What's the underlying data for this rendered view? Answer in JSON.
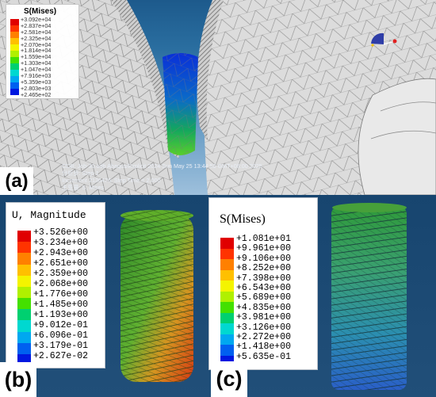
{
  "panel_a": {
    "label": "(a)",
    "legend_title": "S(Mises)",
    "legend_values": [
      "+3.092e+04",
      "+2.837e+04",
      "+2.581e+04",
      "+2.325e+04",
      "+2.070e+04",
      "+1.814e+04",
      "+1.559e+04",
      "+1.303e+04",
      "+1.047e+04",
      "+7.916e+03",
      "+5.359e+03",
      "+2.803e+03",
      "+2.465e+02"
    ],
    "legend_colors": [
      "#e00000",
      "#ff3300",
      "#ff8000",
      "#ffc000",
      "#f4f400",
      "#b0f000",
      "#44e000",
      "#00d070",
      "#00d8d0",
      "#00a8f0",
      "#0060f0",
      "#0018e0"
    ],
    "info_lines": [
      "ODB: Job-30.odb    Abaqus/Explicit 2024    Sun May 25 13:44:50 GMT+08:00 2025",
      "分析步: Step-1",
      "Increment   2136476: Step Time =    2.000",
      "主变量: S, Mises"
    ]
  },
  "panel_b": {
    "label": "(b)",
    "legend_title": "U, Magnitude",
    "legend_values": [
      "+3.526e+00",
      "+3.234e+00",
      "+2.943e+00",
      "+2.651e+00",
      "+2.359e+00",
      "+2.068e+00",
      "+1.776e+00",
      "+1.485e+00",
      "+1.193e+00",
      "+9.012e-01",
      "+6.096e-01",
      "+3.179e-01",
      "+2.627e-02"
    ],
    "legend_colors": [
      "#e00000",
      "#ff3300",
      "#ff8000",
      "#ffc000",
      "#f4f400",
      "#b0f000",
      "#44e000",
      "#00d070",
      "#00d8d0",
      "#00a8f0",
      "#0060f0",
      "#0018e0"
    ]
  },
  "panel_c": {
    "label": "(c)",
    "legend_title": "S(Mises)",
    "legend_values": [
      "+1.081e+01",
      "+9.961e+00",
      "+9.106e+00",
      "+8.252e+00",
      "+7.398e+00",
      "+6.543e+00",
      "+5.689e+00",
      "+4.835e+00",
      "+3.981e+00",
      "+3.126e+00",
      "+2.272e+00",
      "+1.418e+00",
      "+5.635e-01"
    ],
    "legend_colors": [
      "#e00000",
      "#ff3300",
      "#ff8000",
      "#ffc000",
      "#f4f400",
      "#b0f000",
      "#44e000",
      "#00d070",
      "#00d8d0",
      "#00a8f0",
      "#0060f0",
      "#0018e0"
    ]
  }
}
